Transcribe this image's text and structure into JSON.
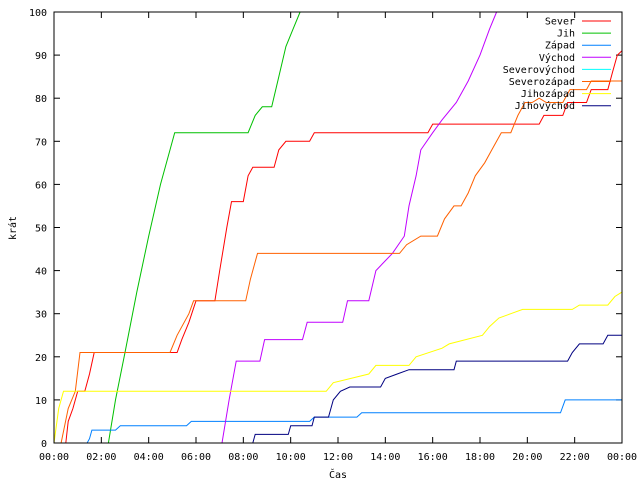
{
  "chart_data": {
    "type": "line",
    "xlabel": "Čas",
    "ylabel": "krát",
    "xlim": [
      0,
      24
    ],
    "ylim": [
      0,
      100
    ],
    "x_ticks": [
      0,
      2,
      4,
      6,
      8,
      10,
      12,
      14,
      16,
      18,
      20,
      22,
      24
    ],
    "x_tick_labels": [
      "00:00",
      "02:00",
      "04:00",
      "06:00",
      "08:00",
      "10:00",
      "12:00",
      "14:00",
      "16:00",
      "18:00",
      "20:00",
      "22:00",
      "00:00"
    ],
    "y_ticks": [
      0,
      10,
      20,
      30,
      40,
      50,
      60,
      70,
      80,
      90,
      100
    ],
    "y_tick_labels": [
      "0",
      "10",
      "20",
      "30",
      "40",
      "50",
      "60",
      "70",
      "80",
      "90",
      "100"
    ],
    "grid": false,
    "legend_position": "top-right",
    "series": [
      {
        "name": "Sever",
        "color": "#ff0000",
        "points": [
          [
            0.5,
            0
          ],
          [
            0.6,
            5
          ],
          [
            0.8,
            8
          ],
          [
            1.0,
            12
          ],
          [
            1.3,
            12
          ],
          [
            1.5,
            16
          ],
          [
            1.7,
            21
          ],
          [
            5.2,
            21
          ],
          [
            5.4,
            24
          ],
          [
            5.7,
            28
          ],
          [
            6.0,
            33
          ],
          [
            6.8,
            33
          ],
          [
            7.0,
            40
          ],
          [
            7.3,
            50
          ],
          [
            7.5,
            56
          ],
          [
            8.0,
            56
          ],
          [
            8.2,
            62
          ],
          [
            8.4,
            64
          ],
          [
            9.3,
            64
          ],
          [
            9.5,
            68
          ],
          [
            9.8,
            70
          ],
          [
            10.8,
            70
          ],
          [
            11.0,
            72
          ],
          [
            15.8,
            72
          ],
          [
            16.0,
            74
          ],
          [
            20.5,
            74
          ],
          [
            20.7,
            76
          ],
          [
            21.5,
            76
          ],
          [
            21.7,
            79
          ],
          [
            22.5,
            79
          ],
          [
            22.7,
            82
          ],
          [
            23.4,
            82
          ],
          [
            23.6,
            86
          ],
          [
            23.8,
            90
          ],
          [
            24,
            91
          ]
        ]
      },
      {
        "name": "Jih",
        "color": "#00c000",
        "points": [
          [
            2.3,
            0
          ],
          [
            2.6,
            10
          ],
          [
            3.0,
            21
          ],
          [
            3.5,
            35
          ],
          [
            4.0,
            48
          ],
          [
            4.5,
            60
          ],
          [
            4.9,
            68
          ],
          [
            5.1,
            72
          ],
          [
            8.2,
            72
          ],
          [
            8.5,
            76
          ],
          [
            8.8,
            78
          ],
          [
            9.2,
            78
          ],
          [
            9.5,
            85
          ],
          [
            9.8,
            92
          ],
          [
            10.1,
            96
          ],
          [
            10.4,
            100
          ]
        ]
      },
      {
        "name": "Západ",
        "color": "#0080ff",
        "points": [
          [
            1.4,
            0
          ],
          [
            1.5,
            1
          ],
          [
            1.6,
            3
          ],
          [
            2.6,
            3
          ],
          [
            2.8,
            4
          ],
          [
            5.6,
            4
          ],
          [
            5.8,
            5
          ],
          [
            10.8,
            5
          ],
          [
            11.0,
            6
          ],
          [
            12.8,
            6
          ],
          [
            13.0,
            7
          ],
          [
            21.4,
            7
          ],
          [
            21.6,
            10
          ],
          [
            24,
            10
          ]
        ]
      },
      {
        "name": "Východ",
        "color": "#c000ff",
        "points": [
          [
            7.1,
            0
          ],
          [
            7.4,
            10
          ],
          [
            7.7,
            19
          ],
          [
            8.7,
            19
          ],
          [
            8.9,
            24
          ],
          [
            10.5,
            24
          ],
          [
            10.7,
            28
          ],
          [
            12.2,
            28
          ],
          [
            12.4,
            33
          ],
          [
            13.3,
            33
          ],
          [
            13.6,
            40
          ],
          [
            14.3,
            44
          ],
          [
            14.8,
            48
          ],
          [
            15.0,
            55
          ],
          [
            15.3,
            62
          ],
          [
            15.5,
            68
          ],
          [
            16.0,
            72
          ],
          [
            16.4,
            75
          ],
          [
            17.0,
            79
          ],
          [
            17.5,
            84
          ],
          [
            18.0,
            90
          ],
          [
            18.4,
            96
          ],
          [
            18.7,
            100
          ]
        ]
      },
      {
        "name": "Severovýchod",
        "color": "#00ffff",
        "points": []
      },
      {
        "name": "Severozápad",
        "color": "#ff6000",
        "points": [
          [
            0.3,
            0
          ],
          [
            0.6,
            8
          ],
          [
            0.9,
            12
          ],
          [
            1.1,
            21
          ],
          [
            4.9,
            21
          ],
          [
            5.2,
            25
          ],
          [
            5.7,
            30
          ],
          [
            5.9,
            33
          ],
          [
            8.1,
            33
          ],
          [
            8.3,
            38
          ],
          [
            8.6,
            44
          ],
          [
            14.6,
            44
          ],
          [
            14.9,
            46
          ],
          [
            15.5,
            48
          ],
          [
            16.2,
            48
          ],
          [
            16.5,
            52
          ],
          [
            16.9,
            55
          ],
          [
            17.2,
            55
          ],
          [
            17.5,
            58
          ],
          [
            17.8,
            62
          ],
          [
            18.2,
            65
          ],
          [
            18.5,
            68
          ],
          [
            18.9,
            72
          ],
          [
            19.3,
            72
          ],
          [
            19.6,
            76
          ],
          [
            19.9,
            79
          ],
          [
            20.2,
            79
          ],
          [
            20.5,
            80
          ],
          [
            20.8,
            79
          ],
          [
            21.5,
            79
          ],
          [
            21.8,
            82
          ],
          [
            22.5,
            82
          ],
          [
            22.7,
            84
          ],
          [
            24,
            84
          ]
        ]
      },
      {
        "name": "Jihozápad",
        "color": "#ffff00",
        "points": [
          [
            0,
            0
          ],
          [
            0.2,
            8
          ],
          [
            0.4,
            12
          ],
          [
            11.5,
            12
          ],
          [
            11.8,
            14
          ],
          [
            13.3,
            16
          ],
          [
            13.6,
            18
          ],
          [
            15.0,
            18
          ],
          [
            15.3,
            20
          ],
          [
            16.4,
            22
          ],
          [
            16.7,
            23
          ],
          [
            18.1,
            25
          ],
          [
            18.4,
            27
          ],
          [
            18.8,
            29
          ],
          [
            19.3,
            30
          ],
          [
            19.8,
            31
          ],
          [
            21.9,
            31
          ],
          [
            22.2,
            32
          ],
          [
            23.4,
            32
          ],
          [
            23.7,
            34
          ],
          [
            24,
            35
          ]
        ]
      },
      {
        "name": "Jihovýchod",
        "color": "#000080",
        "points": [
          [
            8.4,
            0
          ],
          [
            8.5,
            2
          ],
          [
            9.9,
            2
          ],
          [
            10.0,
            4
          ],
          [
            10.9,
            4
          ],
          [
            11.0,
            6
          ],
          [
            11.6,
            6
          ],
          [
            11.8,
            10
          ],
          [
            12.1,
            12
          ],
          [
            12.5,
            13
          ],
          [
            13.8,
            13
          ],
          [
            14.0,
            15
          ],
          [
            14.5,
            16
          ],
          [
            15.0,
            17
          ],
          [
            16.9,
            17
          ],
          [
            17.0,
            19
          ],
          [
            21.7,
            19
          ],
          [
            21.9,
            21
          ],
          [
            22.2,
            23
          ],
          [
            23.2,
            23
          ],
          [
            23.4,
            25
          ],
          [
            24,
            25
          ]
        ]
      }
    ]
  }
}
